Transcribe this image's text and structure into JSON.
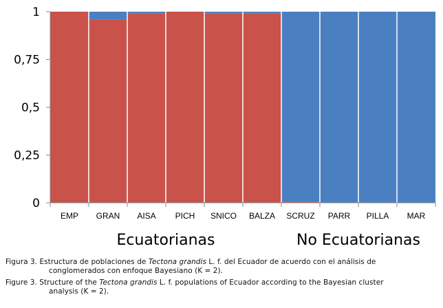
{
  "chart_data": {
    "type": "bar",
    "stacked": true,
    "normalized": true,
    "categories": [
      "EMP",
      "GRAN",
      "AISA",
      "PICH",
      "SNICO",
      "BALZA",
      "SCRUZ",
      "PARR",
      "PILLA",
      "MAR"
    ],
    "series": [
      {
        "color": "#c9524a",
        "values": [
          1.0,
          0.96,
          0.99,
          1.0,
          0.99,
          0.99,
          0.005,
          0.0,
          0.0,
          0.0
        ]
      },
      {
        "color": "#4a7fc1",
        "values": [
          0.0,
          0.04,
          0.01,
          0.0,
          0.01,
          0.01,
          0.995,
          1.0,
          1.0,
          1.0
        ]
      }
    ],
    "ylim": [
      0,
      1
    ],
    "yticks": [
      {
        "value": 0,
        "label": "0"
      },
      {
        "value": 0.25,
        "label": "0,25"
      },
      {
        "value": 0.5,
        "label": "0,5"
      },
      {
        "value": 0.75,
        "label": "0,75"
      },
      {
        "value": 1,
        "label": "1"
      }
    ],
    "groups": [
      {
        "label": "Ecuatorianas",
        "from": 0,
        "to": 5
      },
      {
        "label": "No Ecuatorianas",
        "from": 6,
        "to": 9
      }
    ],
    "grid": false
  },
  "caption": {
    "es": {
      "prefix": "Figura 3. Estructura de poblaciones de ",
      "species": "Tectona grandis",
      "middle": " L. f. del Ecuador de acuerdo con el análisis de",
      "line2": "conglomerados con enfoque Bayesiano (K = 2)."
    },
    "en": {
      "prefix": "Figure 3. Structure of the ",
      "species": "Tectona grandis",
      "middle": " L. f. populations of Ecuador according to the Bayesian cluster",
      "line2": "analysis (K = 2)."
    }
  }
}
